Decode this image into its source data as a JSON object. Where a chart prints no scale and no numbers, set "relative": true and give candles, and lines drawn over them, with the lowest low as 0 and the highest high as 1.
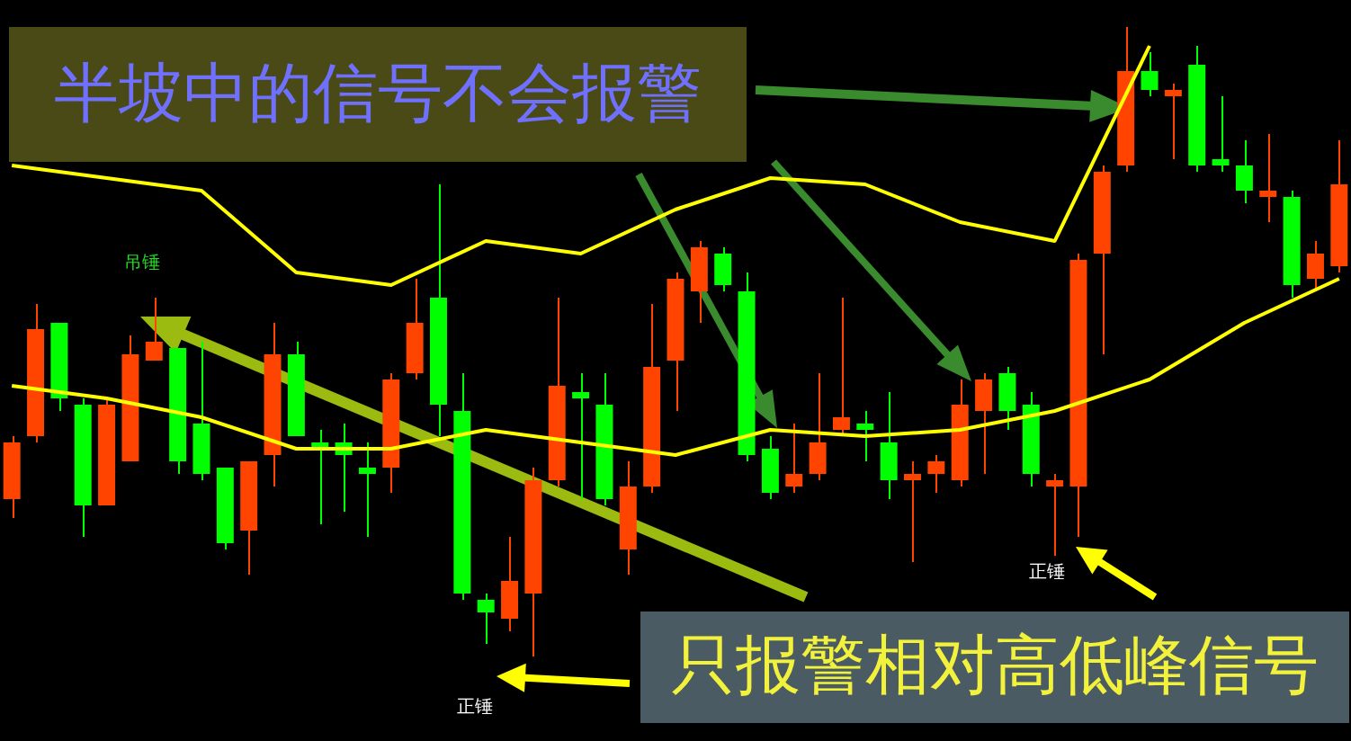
{
  "chart_data": {
    "type": "candlestick",
    "relative": true,
    "categories": [
      null,
      null,
      null,
      null,
      null,
      null,
      null,
      null,
      null,
      null,
      null,
      null,
      null,
      null,
      null,
      null,
      null,
      null,
      null,
      null,
      null,
      null,
      null,
      null,
      null,
      null,
      null,
      null,
      null,
      null,
      null,
      null,
      null,
      null,
      null,
      null,
      null,
      null,
      null,
      null,
      null,
      null,
      null,
      null,
      null,
      null,
      null,
      null,
      null,
      null,
      null,
      null,
      null,
      null,
      null,
      null,
      null
    ],
    "ohlc": [
      [
        0.25,
        0.35,
        0.22,
        0.34
      ],
      [
        0.35,
        0.56,
        0.34,
        0.52
      ],
      [
        0.53,
        0.53,
        0.39,
        0.41
      ],
      [
        0.4,
        0.41,
        0.19,
        0.24
      ],
      [
        0.24,
        0.41,
        0.24,
        0.4
      ],
      [
        0.31,
        0.51,
        0.31,
        0.48
      ],
      [
        0.47,
        0.57,
        0.47,
        0.5
      ],
      [
        0.49,
        0.49,
        0.29,
        0.31
      ],
      [
        0.37,
        0.5,
        0.28,
        0.29
      ],
      [
        0.3,
        0.3,
        0.17,
        0.18
      ],
      [
        0.2,
        0.31,
        0.13,
        0.31
      ],
      [
        0.32,
        0.53,
        0.27,
        0.48
      ],
      [
        0.48,
        0.5,
        0.35,
        0.35
      ],
      [
        0.34,
        0.36,
        0.21,
        0.33
      ],
      [
        0.34,
        0.37,
        0.23,
        0.32
      ],
      [
        0.3,
        0.34,
        0.19,
        0.29
      ],
      [
        0.3,
        0.45,
        0.26,
        0.44
      ],
      [
        0.45,
        0.6,
        0.44,
        0.53
      ],
      [
        0.57,
        0.75,
        0.35,
        0.4
      ],
      [
        0.39,
        0.45,
        0.09,
        0.1
      ],
      [
        0.09,
        0.1,
        0.02,
        0.07
      ],
      [
        0.06,
        0.19,
        0.04,
        0.12
      ],
      [
        0.1,
        0.3,
        0,
        0.28
      ],
      [
        0.28,
        0.57,
        0.27,
        0.43
      ],
      [
        0.42,
        0.45,
        0.25,
        0.41
      ],
      [
        0.4,
        0.45,
        0.24,
        0.25
      ],
      [
        0.17,
        0.31,
        0.13,
        0.27
      ],
      [
        0.27,
        0.56,
        0.26,
        0.46
      ],
      [
        0.47,
        0.61,
        0.39,
        0.6
      ],
      [
        0.58,
        0.66,
        0.53,
        0.65
      ],
      [
        0.64,
        0.65,
        0.58,
        0.59
      ],
      [
        0.58,
        0.61,
        0.31,
        0.32
      ],
      [
        0.33,
        0.35,
        0.25,
        0.26
      ],
      [
        0.27,
        0.37,
        0.26,
        0.29
      ],
      [
        0.29,
        0.45,
        0.28,
        0.34
      ],
      [
        0.36,
        0.57,
        0.35,
        0.38
      ],
      [
        0.37,
        0.39,
        0.31,
        0.36
      ],
      [
        0.34,
        0.42,
        0.25,
        0.28
      ],
      [
        0.28,
        0.31,
        0.15,
        0.29
      ],
      [
        0.29,
        0.32,
        0.26,
        0.31
      ],
      [
        0.28,
        0.44,
        0.27,
        0.4
      ],
      [
        0.39,
        0.45,
        0.29,
        0.44
      ],
      [
        0.45,
        0.46,
        0.36,
        0.39
      ],
      [
        0.4,
        0.42,
        0.27,
        0.29
      ],
      [
        0.27,
        0.29,
        0.16,
        0.28
      ],
      [
        0.27,
        0.64,
        0.19,
        0.63
      ],
      [
        0.64,
        0.78,
        0.48,
        0.77
      ],
      [
        0.78,
        1,
        0.77,
        0.93
      ],
      [
        0.93,
        0.96,
        0.89,
        0.9
      ],
      [
        0.89,
        0.91,
        0.79,
        0.9
      ],
      [
        0.94,
        0.97,
        0.77,
        0.78
      ],
      [
        0.79,
        0.89,
        0.77,
        0.78
      ],
      [
        0.78,
        0.82,
        0.72,
        0.74
      ],
      [
        0.73,
        0.83,
        0.69,
        0.74
      ],
      [
        0.73,
        0.74,
        0.57,
        0.59
      ],
      [
        0.6,
        0.66,
        0.58,
        0.64
      ],
      [
        0.62,
        0.82,
        0.61,
        0.75
      ]
    ],
    "colors": [
      "#ff4400",
      "#ff4400",
      "#00ff00",
      "#00ff00",
      "#ff4400",
      "#ff4400",
      "#ff4400",
      "#00ff00",
      "#00ff00",
      "#00ff00",
      "#ff4400",
      "#ff4400",
      "#00ff00",
      "#00ff00",
      "#00ff00",
      "#00ff00",
      "#ff4400",
      "#ff4400",
      "#00ff00",
      "#00ff00",
      "#00ff00",
      "#ff4400",
      "#ff4400",
      "#ff4400",
      "#00ff00",
      "#00ff00",
      "#ff4400",
      "#ff4400",
      "#ff4400",
      "#ff4400",
      "#00ff00",
      "#00ff00",
      "#00ff00",
      "#ff4400",
      "#ff4400",
      "#ff4400",
      "#00ff00",
      "#00ff00",
      "#ff4400",
      "#ff4400",
      "#ff4400",
      "#ff4400",
      "#00ff00",
      "#00ff00",
      "#ff4400",
      "#ff4400",
      "#ff4400",
      "#ff4400",
      "#00ff00",
      "#ff4400",
      "#00ff00",
      "#00ff00",
      "#00ff00",
      "#ff4400",
      "#00ff00",
      "#ff4400",
      "#ff4400"
    ],
    "series": [
      {
        "type": "line",
        "color": "#ffff00",
        "values": [
          0.78,
          null,
          null,
          null,
          null,
          null,
          null,
          null,
          0.74,
          null,
          null,
          null,
          0.61,
          null,
          null,
          null,
          0.59,
          null,
          null,
          null,
          0.66,
          null,
          null,
          null,
          0.64,
          null,
          null,
          null,
          0.71,
          null,
          null,
          null,
          0.76,
          null,
          null,
          null,
          0.75,
          null,
          null,
          null,
          0.69,
          null,
          null,
          null,
          0.66,
          null,
          null,
          null,
          0.97,
          null,
          null,
          null,
          null,
          null,
          null,
          null,
          null
        ]
      },
      {
        "type": "line",
        "color": "#ffff00",
        "values": [
          0.43,
          null,
          null,
          null,
          0.41,
          null,
          null,
          null,
          0.38,
          null,
          null,
          null,
          0.33,
          null,
          null,
          null,
          0.33,
          null,
          null,
          null,
          0.36,
          null,
          null,
          null,
          0.34,
          null,
          null,
          null,
          0.32,
          null,
          null,
          null,
          0.36,
          null,
          null,
          null,
          0.35,
          null,
          null,
          null,
          0.36,
          null,
          null,
          null,
          0.39,
          null,
          null,
          null,
          0.44,
          null,
          null,
          null,
          0.53,
          null,
          null,
          null,
          0.6
        ]
      }
    ],
    "annotations": [
      "半坡中的信号不会报警",
      "只报警相对高低峰信号",
      "吊锤",
      "正锤",
      "正锤"
    ]
  }
}
